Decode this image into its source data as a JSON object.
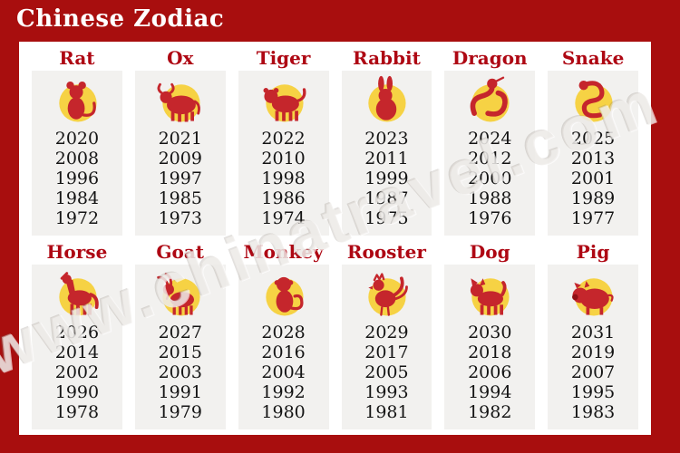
{
  "title": "Chinese Zodiac",
  "watermark": "www.chinatravel.com",
  "colors": {
    "background": "#a80e0e",
    "panel": "#ffffff",
    "column_strip": "#f2f1ef",
    "animal_label": "#ae0713",
    "year_text": "#141414",
    "title_text": "#ffffff",
    "icon_red": "#c5262c",
    "icon_dark_red": "#8f1014",
    "icon_yellow": "#f6d244"
  },
  "chart_data": {
    "type": "table",
    "title": "Chinese Zodiac",
    "layout": "6 columns x 2 rows of animal signs, 5 years listed per sign",
    "columns": [
      {
        "label": "Rat",
        "icon": "rat-icon",
        "years": [
          "2020",
          "2008",
          "1996",
          "1984",
          "1972"
        ]
      },
      {
        "label": "Ox",
        "icon": "ox-icon",
        "years": [
          "2021",
          "2009",
          "1997",
          "1985",
          "1973"
        ]
      },
      {
        "label": "Tiger",
        "icon": "tiger-icon",
        "years": [
          "2022",
          "2010",
          "1998",
          "1986",
          "1974"
        ]
      },
      {
        "label": "Rabbit",
        "icon": "rabbit-icon",
        "years": [
          "2023",
          "2011",
          "1999",
          "1987",
          "1975"
        ]
      },
      {
        "label": "Dragon",
        "icon": "dragon-icon",
        "years": [
          "2024",
          "2012",
          "2000",
          "1988",
          "1976"
        ]
      },
      {
        "label": "Snake",
        "icon": "snake-icon",
        "years": [
          "2025",
          "2013",
          "2001",
          "1989",
          "1977"
        ]
      },
      {
        "label": "Horse",
        "icon": "horse-icon",
        "years": [
          "2026",
          "2014",
          "2002",
          "1990",
          "1978"
        ]
      },
      {
        "label": "Goat",
        "icon": "goat-icon",
        "years": [
          "2027",
          "2015",
          "2003",
          "1991",
          "1979"
        ]
      },
      {
        "label": "Monkey",
        "icon": "monkey-icon",
        "years": [
          "2028",
          "2016",
          "2004",
          "1992",
          "1980"
        ]
      },
      {
        "label": "Rooster",
        "icon": "rooster-icon",
        "years": [
          "2029",
          "2017",
          "2005",
          "1993",
          "1981"
        ]
      },
      {
        "label": "Dog",
        "icon": "dog-icon",
        "years": [
          "2030",
          "2018",
          "2006",
          "1994",
          "1982"
        ]
      },
      {
        "label": "Pig",
        "icon": "pig-icon",
        "years": [
          "2031",
          "2019",
          "2007",
          "1995",
          "1983"
        ]
      }
    ]
  }
}
